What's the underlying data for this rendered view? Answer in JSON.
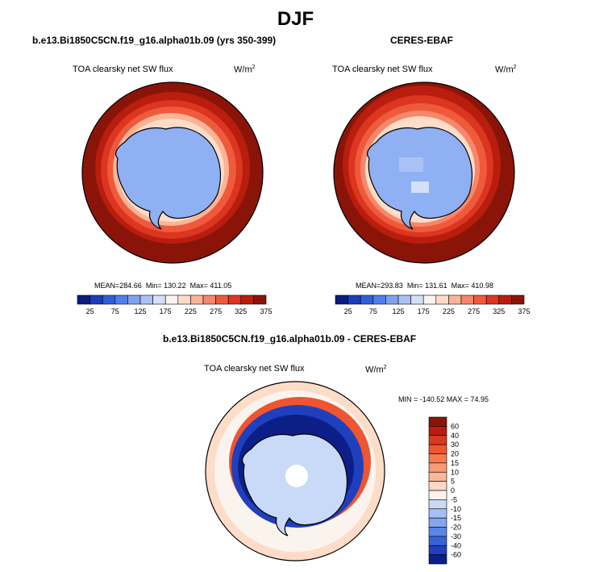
{
  "title": "DJF",
  "colors": {
    "land_blue": "#8fb0f2",
    "dark_red": "#8b1408",
    "coast": "#000000",
    "ocean_pale": "#fbd9c4"
  },
  "chart_data": [
    {
      "type": "heatmap",
      "projection": "south-polar-stereographic",
      "panel_title": "b.e13.Bi1850C5CN.f19_g16.alpha01b.09 (yrs 350-399)",
      "field": "TOA clearsky net SW flux",
      "units_base": "W/m",
      "units_exp": "2",
      "stats": {
        "mean_label": "MEAN=",
        "mean": "284.66",
        "min_label": "Min=",
        "min": "130.22",
        "max_label": "Max=",
        "max": "411.05"
      },
      "colorbar": {
        "orientation": "horizontal",
        "tick_labels": [
          "25",
          "75",
          "125",
          "175",
          "225",
          "275",
          "325",
          "375"
        ],
        "colors": [
          "#0b1c7a",
          "#1a3fb8",
          "#2f5fd8",
          "#4f7fe8",
          "#7fa2f0",
          "#a9c1f5",
          "#d2e0fa",
          "#fbf3ee",
          "#fddcc8",
          "#fbb496",
          "#f7876a",
          "#ef5a3c",
          "#dc3520",
          "#b81d0e",
          "#8b1408"
        ]
      }
    },
    {
      "type": "heatmap",
      "projection": "south-polar-stereographic",
      "panel_title": "CERES-EBAF",
      "field": "TOA clearsky net SW flux",
      "units_base": "W/m",
      "units_exp": "2",
      "stats": {
        "mean_label": "MEAN=",
        "mean": "293.83",
        "min_label": "Min=",
        "min": "131.61",
        "max_label": "Max=",
        "max": "410.98"
      },
      "colorbar": {
        "orientation": "horizontal",
        "tick_labels": [
          "25",
          "75",
          "125",
          "175",
          "225",
          "275",
          "325",
          "375"
        ],
        "colors": [
          "#0b1c7a",
          "#1a3fb8",
          "#2f5fd8",
          "#4f7fe8",
          "#7fa2f0",
          "#a9c1f5",
          "#d2e0fa",
          "#fbf3ee",
          "#fddcc8",
          "#fbb496",
          "#f7876a",
          "#ef5a3c",
          "#dc3520",
          "#b81d0e",
          "#8b1408"
        ]
      }
    },
    {
      "type": "heatmap",
      "projection": "south-polar-stereographic",
      "panel_title": "b.e13.Bi1850C5CN.f19_g16.alpha01b.09 - CERES-EBAF",
      "field": "TOA clearsky net SW flux",
      "units_base": "W/m",
      "units_exp": "2",
      "stats_text": "MIN = -140.52 MAX =  74.95",
      "colorbar": {
        "orientation": "vertical",
        "tick_labels": [
          "60",
          "40",
          "30",
          "20",
          "15",
          "10",
          "5",
          "0",
          "-5",
          "-10",
          "-15",
          "-20",
          "-30",
          "-40",
          "-60"
        ],
        "colors": [
          "#8b1408",
          "#b81d0e",
          "#d83a1e",
          "#ee5530",
          "#f57a50",
          "#f89a74",
          "#fbb79a",
          "#fdd8c4",
          "#fbf3ee",
          "#c9daf8",
          "#a6c0f4",
          "#84a6ee",
          "#5a86e6",
          "#3562d8",
          "#1f3fbc",
          "#0c1f88"
        ]
      }
    }
  ]
}
